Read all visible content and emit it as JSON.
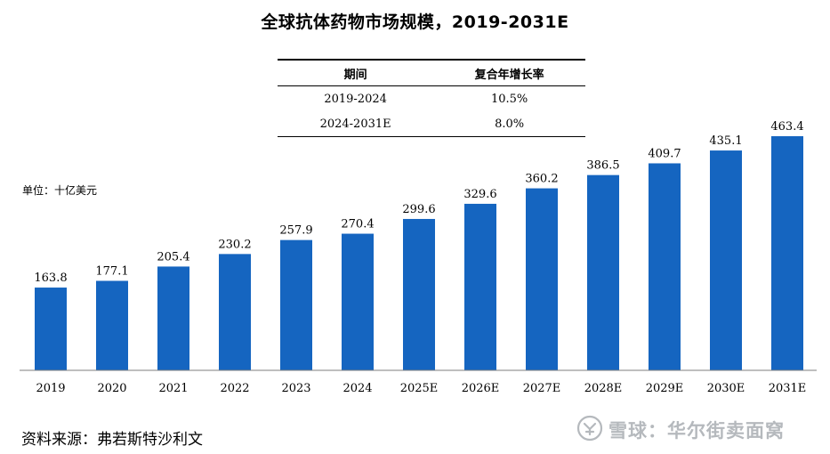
{
  "chart_data": {
    "type": "bar",
    "title": "全球抗体药物市场规模，2019-2031E",
    "unit_label": "单位：十亿美元",
    "categories": [
      "2019",
      "2020",
      "2021",
      "2022",
      "2023",
      "2024",
      "2025E",
      "2026E",
      "2027E",
      "2028E",
      "2029E",
      "2030E",
      "2031E"
    ],
    "values": [
      163.8,
      177.1,
      205.4,
      230.2,
      257.9,
      270.4,
      299.6,
      329.6,
      360.2,
      386.5,
      409.7,
      435.1,
      463.4
    ],
    "value_labels": [
      "163.8",
      "177.1",
      "205.4",
      "230.2",
      "257.9",
      "270.4",
      "299.6",
      "329.6",
      "360.2",
      "386.5",
      "409.7",
      "435.1",
      "463.4"
    ],
    "ylim": [
      0,
      480
    ],
    "grid": false,
    "bar_color": "#1565c0"
  },
  "cagr_table": {
    "headers": [
      "期间",
      "复合年增长率"
    ],
    "rows": [
      [
        "2019-2024",
        "10.5%"
      ],
      [
        "2024-2031E",
        "8.0%"
      ]
    ]
  },
  "source_note": "资料来源：弗若斯特沙利文",
  "watermark": {
    "text": "雪球：华尔街卖面窝",
    "icon": "snowball-logo-icon"
  }
}
